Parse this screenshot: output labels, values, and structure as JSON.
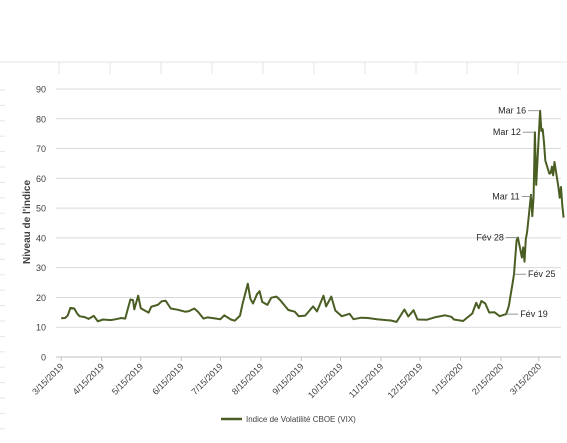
{
  "chart_data": {
    "type": "line",
    "title": "",
    "xlabel": "",
    "ylabel": "Niveau de l'indice",
    "ylim": [
      0,
      90
    ],
    "yticks": [
      "0",
      "10",
      "20",
      "30",
      "40",
      "50",
      "60",
      "70",
      "80",
      "90"
    ],
    "xlim": [
      "2019-03-11",
      "2020-04-01"
    ],
    "xticks": [
      "3/15/2019",
      "4/15/2019",
      "5/15/2019",
      "6/15/2019",
      "7/15/2019",
      "8/15/2019",
      "9/15/2019",
      "10/15/2019",
      "11/15/2019",
      "12/15/2019",
      "1/15/2020",
      "2/15/2020",
      "3/15/2020"
    ],
    "grid": "horizontal",
    "legend_position": "bottom",
    "colors": {
      "series": "#4a5e23",
      "grid": "#d9d9d9",
      "axis": "#bfbfbf",
      "text": "#404040"
    },
    "series": [
      {
        "name": "Indice de Volatilité CBOE (VIX)",
        "points": [
          [
            "2019-03-15",
            13
          ],
          [
            "2019-03-18",
            13.1
          ],
          [
            "2019-03-20",
            13.9
          ],
          [
            "2019-03-22",
            16.5
          ],
          [
            "2019-03-25",
            16.3
          ],
          [
            "2019-03-27",
            14.7
          ],
          [
            "2019-03-29",
            13.7
          ],
          [
            "2019-04-02",
            13.4
          ],
          [
            "2019-04-05",
            12.8
          ],
          [
            "2019-04-09",
            13.8
          ],
          [
            "2019-04-12",
            12
          ],
          [
            "2019-04-16",
            12.6
          ],
          [
            "2019-04-22",
            12.4
          ],
          [
            "2019-04-26",
            12.7
          ],
          [
            "2019-04-30",
            13.1
          ],
          [
            "2019-05-03",
            12.9
          ],
          [
            "2019-05-07",
            19.3
          ],
          [
            "2019-05-09",
            19.1
          ],
          [
            "2019-05-10",
            16
          ],
          [
            "2019-05-13",
            20.6
          ],
          [
            "2019-05-15",
            16.4
          ],
          [
            "2019-05-17",
            15.9
          ],
          [
            "2019-05-21",
            14.9
          ],
          [
            "2019-05-23",
            16.9
          ],
          [
            "2019-05-28",
            17.5
          ],
          [
            "2019-05-31",
            18.7
          ],
          [
            "2019-06-03",
            18.9
          ],
          [
            "2019-06-07",
            16.3
          ],
          [
            "2019-06-12",
            15.9
          ],
          [
            "2019-06-18",
            15.2
          ],
          [
            "2019-06-21",
            15.4
          ],
          [
            "2019-06-25",
            16.3
          ],
          [
            "2019-06-28",
            15.1
          ],
          [
            "2019-07-02",
            12.9
          ],
          [
            "2019-07-05",
            13.3
          ],
          [
            "2019-07-10",
            13
          ],
          [
            "2019-07-15",
            12.7
          ],
          [
            "2019-07-18",
            14
          ],
          [
            "2019-07-23",
            12.6
          ],
          [
            "2019-07-26",
            12.2
          ],
          [
            "2019-07-30",
            13.9
          ],
          [
            "2019-08-01",
            17.9
          ],
          [
            "2019-08-05",
            24.6
          ],
          [
            "2019-08-07",
            19.5
          ],
          [
            "2019-08-09",
            17.97
          ],
          [
            "2019-08-12",
            21.1
          ],
          [
            "2019-08-14",
            22.1
          ],
          [
            "2019-08-16",
            18.5
          ],
          [
            "2019-08-20",
            17.5
          ],
          [
            "2019-08-23",
            19.9
          ],
          [
            "2019-08-27",
            20.3
          ],
          [
            "2019-08-30",
            19
          ],
          [
            "2019-09-05",
            15.8
          ],
          [
            "2019-09-10",
            15.2
          ],
          [
            "2019-09-13",
            13.7
          ],
          [
            "2019-09-18",
            13.9
          ],
          [
            "2019-09-24",
            17
          ],
          [
            "2019-09-27",
            15.3
          ],
          [
            "2019-10-02",
            20.6
          ],
          [
            "2019-10-04",
            17
          ],
          [
            "2019-10-08",
            20.3
          ],
          [
            "2019-10-11",
            15.6
          ],
          [
            "2019-10-16",
            13.7
          ],
          [
            "2019-10-22",
            14.5
          ],
          [
            "2019-10-25",
            12.7
          ],
          [
            "2019-10-31",
            13.2
          ],
          [
            "2019-11-05",
            13.1
          ],
          [
            "2019-11-12",
            12.7
          ],
          [
            "2019-11-19",
            12.4
          ],
          [
            "2019-11-22",
            12.3
          ],
          [
            "2019-11-27",
            11.8
          ],
          [
            "2019-12-03",
            15.96
          ],
          [
            "2019-12-06",
            13.6
          ],
          [
            "2019-12-10",
            15.7
          ],
          [
            "2019-12-13",
            12.6
          ],
          [
            "2019-12-20",
            12.5
          ],
          [
            "2019-12-27",
            13.4
          ],
          [
            "2020-01-03",
            14
          ],
          [
            "2020-01-08",
            13.5
          ],
          [
            "2020-01-10",
            12.6
          ],
          [
            "2020-01-17",
            12.1
          ],
          [
            "2020-01-24",
            14.6
          ],
          [
            "2020-01-27",
            18.2
          ],
          [
            "2020-01-29",
            16.4
          ],
          [
            "2020-01-31",
            18.8
          ],
          [
            "2020-02-03",
            17.97
          ],
          [
            "2020-02-06",
            14.96
          ],
          [
            "2020-02-10",
            15.04
          ],
          [
            "2020-02-14",
            13.7
          ],
          [
            "2020-02-19",
            14.4
          ],
          [
            "2020-02-21",
            17.1
          ],
          [
            "2020-02-24",
            25
          ],
          [
            "2020-02-25",
            27.8
          ],
          [
            "2020-02-27",
            39.2
          ],
          [
            "2020-02-28",
            40.1
          ],
          [
            "2020-03-02",
            33.4
          ],
          [
            "2020-03-03",
            36.8
          ],
          [
            "2020-03-04",
            31.99
          ],
          [
            "2020-03-05",
            39.6
          ],
          [
            "2020-03-06",
            41.9
          ],
          [
            "2020-03-09",
            54.5
          ],
          [
            "2020-03-10",
            47.3
          ],
          [
            "2020-03-11",
            53.9
          ],
          [
            "2020-03-12",
            75.5
          ],
          [
            "2020-03-13",
            57.8
          ],
          [
            "2020-03-16",
            82.7
          ],
          [
            "2020-03-17",
            75.9
          ],
          [
            "2020-03-18",
            76.5
          ],
          [
            "2020-03-19",
            72
          ],
          [
            "2020-03-20",
            66
          ],
          [
            "2020-03-23",
            61.6
          ],
          [
            "2020-03-24",
            61.7
          ],
          [
            "2020-03-25",
            63.9
          ],
          [
            "2020-03-26",
            61
          ],
          [
            "2020-03-27",
            65.5
          ],
          [
            "2020-03-30",
            57.1
          ],
          [
            "2020-03-31",
            53.5
          ],
          [
            "2020-04-01",
            57.1
          ],
          [
            "2020-04-02",
            50.9
          ],
          [
            "2020-04-03",
            46.8
          ]
        ]
      }
    ],
    "annotations": [
      {
        "label": "Mar 16",
        "date": "2020-03-16",
        "value": 82.7,
        "side": "left"
      },
      {
        "label": "Mar 12",
        "date": "2020-03-12",
        "value": 75.5,
        "side": "left"
      },
      {
        "label": "Mar 11",
        "date": "2020-03-11",
        "value": 53.9,
        "side": "left"
      },
      {
        "label": "Fév 28",
        "date": "2020-02-28",
        "value": 40.1,
        "side": "left"
      },
      {
        "label": "Fév 25",
        "date": "2020-02-25",
        "value": 27.8,
        "side": "right"
      },
      {
        "label": "Fév 19",
        "date": "2020-02-19",
        "value": 14.4,
        "side": "right"
      }
    ]
  }
}
